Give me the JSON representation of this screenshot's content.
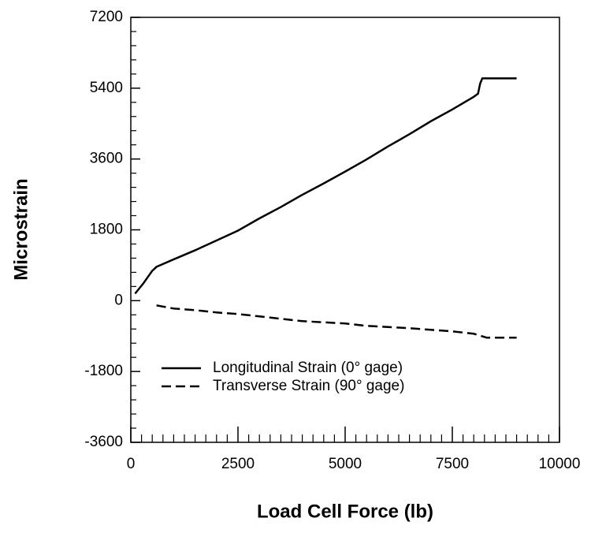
{
  "chart_data": {
    "type": "line",
    "x_label": "Load Cell Force (lb)",
    "y_label": "Microstrain",
    "series": [
      {
        "name": "Longitudinal Strain (0° gage)",
        "color": "#000000",
        "dash": "solid",
        "x": [
          100,
          300,
          500,
          600,
          1000,
          1500,
          2000,
          2500,
          3000,
          3500,
          4000,
          4500,
          5000,
          5500,
          6000,
          6500,
          7000,
          7500,
          8000,
          8100,
          8150,
          8200,
          8500,
          9000
        ],
        "values": [
          180,
          450,
          760,
          860,
          1050,
          1280,
          1530,
          1780,
          2090,
          2380,
          2690,
          2980,
          3280,
          3590,
          3920,
          4230,
          4560,
          4860,
          5180,
          5260,
          5520,
          5650,
          5650,
          5650
        ]
      },
      {
        "name": "Transverse Strain (90° gage)",
        "color": "#000000",
        "dash": "dashed",
        "x": [
          600,
          1000,
          1500,
          2000,
          2500,
          3000,
          3500,
          4000,
          4500,
          5000,
          5500,
          6000,
          6500,
          7000,
          7500,
          8000,
          8300,
          9000
        ],
        "values": [
          -120,
          -200,
          -240,
          -300,
          -340,
          -400,
          -460,
          -520,
          -550,
          -580,
          -640,
          -670,
          -700,
          -740,
          -780,
          -840,
          -940,
          -940
        ]
      }
    ],
    "xlim": [
      0,
      10000
    ],
    "xticks": [
      0,
      2500,
      5000,
      7500,
      10000
    ],
    "x_minor_ticks": [
      250,
      500,
      750,
      1000,
      1250,
      1500,
      1750,
      2000,
      2250,
      2750,
      3000,
      3250,
      3500,
      3750,
      4000,
      4250,
      4500,
      4750,
      5250,
      5500,
      5750,
      6000,
      6250,
      6500,
      6750,
      7000,
      7250,
      7750,
      8000,
      8250,
      8500,
      8750,
      9000,
      9250,
      9500,
      9750
    ],
    "ylim": [
      -3600,
      7200
    ],
    "yticks": [
      -3600,
      -1800,
      0,
      1800,
      3600,
      5400,
      7200
    ],
    "y_minor_ticks": [
      -3240,
      -2880,
      -2520,
      -2160,
      -1440,
      -1080,
      -720,
      -360,
      360,
      720,
      1080,
      1440,
      2160,
      2520,
      2880,
      3240,
      3960,
      4320,
      4680,
      5040,
      5760,
      6120,
      6480,
      6840
    ],
    "legend": "lower left",
    "grid": false
  }
}
